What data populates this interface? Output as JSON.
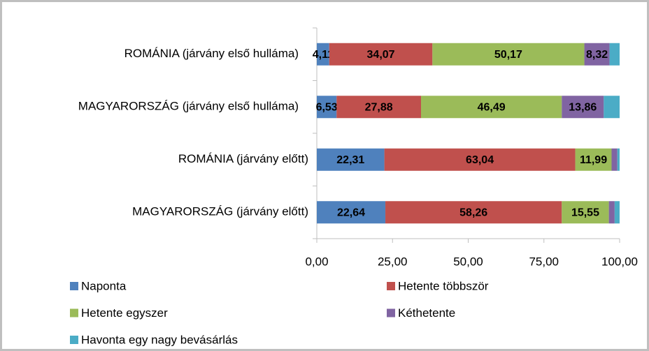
{
  "chart_data": {
    "type": "stacked_bar_horizontal",
    "categories": [
      "ROMÁNIA (járvány első hulláma)",
      "MAGYARORSZÁG (járvány első hulláma)",
      "ROMÁNIA (járvány előtt)",
      "MAGYARORSZÁG (járvány előtt)"
    ],
    "series": [
      {
        "name": "Naponta",
        "color": "#4f81bd",
        "values": [
          4.11,
          6.53,
          22.31,
          22.64
        ],
        "value_labels": [
          "4,11",
          "6,53",
          "22,31",
          "22,64"
        ]
      },
      {
        "name": "Hetente többször",
        "color": "#c0504d",
        "values": [
          34.07,
          27.88,
          63.04,
          58.26
        ],
        "value_labels": [
          "34,07",
          "27,88",
          "63,04",
          "58,26"
        ]
      },
      {
        "name": "Hetente egyszer",
        "color": "#9bbb59",
        "values": [
          50.17,
          46.49,
          11.99,
          15.55
        ],
        "value_labels": [
          "50,17",
          "46,49",
          "11,99",
          "15,55"
        ]
      },
      {
        "name": "Kéthetente",
        "color": "#8064a2",
        "values": [
          8.32,
          13.86,
          1.9,
          1.9
        ],
        "value_labels": [
          "8,32",
          "13,86",
          null,
          null
        ]
      },
      {
        "name": "Havonta egy nagy bevásárlás",
        "color": "#4bacc6",
        "values": [
          3.33,
          5.24,
          0.76,
          1.65
        ],
        "value_labels": [
          null,
          null,
          null,
          null
        ]
      }
    ],
    "xlim": [
      0,
      100
    ],
    "xticks": [
      {
        "value": 0,
        "label": "0,00"
      },
      {
        "value": 25,
        "label": "25,00"
      },
      {
        "value": 50,
        "label": "50,00"
      },
      {
        "value": 75,
        "label": "75,00"
      },
      {
        "value": 100,
        "label": "100,00"
      }
    ],
    "legend": "bottom"
  }
}
